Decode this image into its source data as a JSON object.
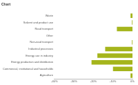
{
  "chart_data": {
    "type": "bar",
    "title": "Chart",
    "orientation": "horizontal",
    "categories": [
      "Waste",
      "Solvent and product use",
      "Road transport",
      "Other",
      "Non-road transport",
      "Industrial processes",
      "Energy use in industry",
      "Energy production and distribution",
      "Commercial, institutional and households",
      "Agriculture"
    ],
    "values": [
      -1,
      -0.3,
      -8,
      0,
      -0.3,
      -14,
      -18,
      -21,
      -10,
      -1
    ],
    "color": "#a5b51c",
    "xlim": [
      -40,
      0
    ],
    "xticks": [
      {
        "value": -40,
        "label": "-40%"
      },
      {
        "value": -30,
        "label": "-30%"
      },
      {
        "value": -20,
        "label": "-20%"
      },
      {
        "value": -10,
        "label": "-10%"
      },
      {
        "value": 0,
        "label": "0%"
      }
    ],
    "grid": false
  }
}
